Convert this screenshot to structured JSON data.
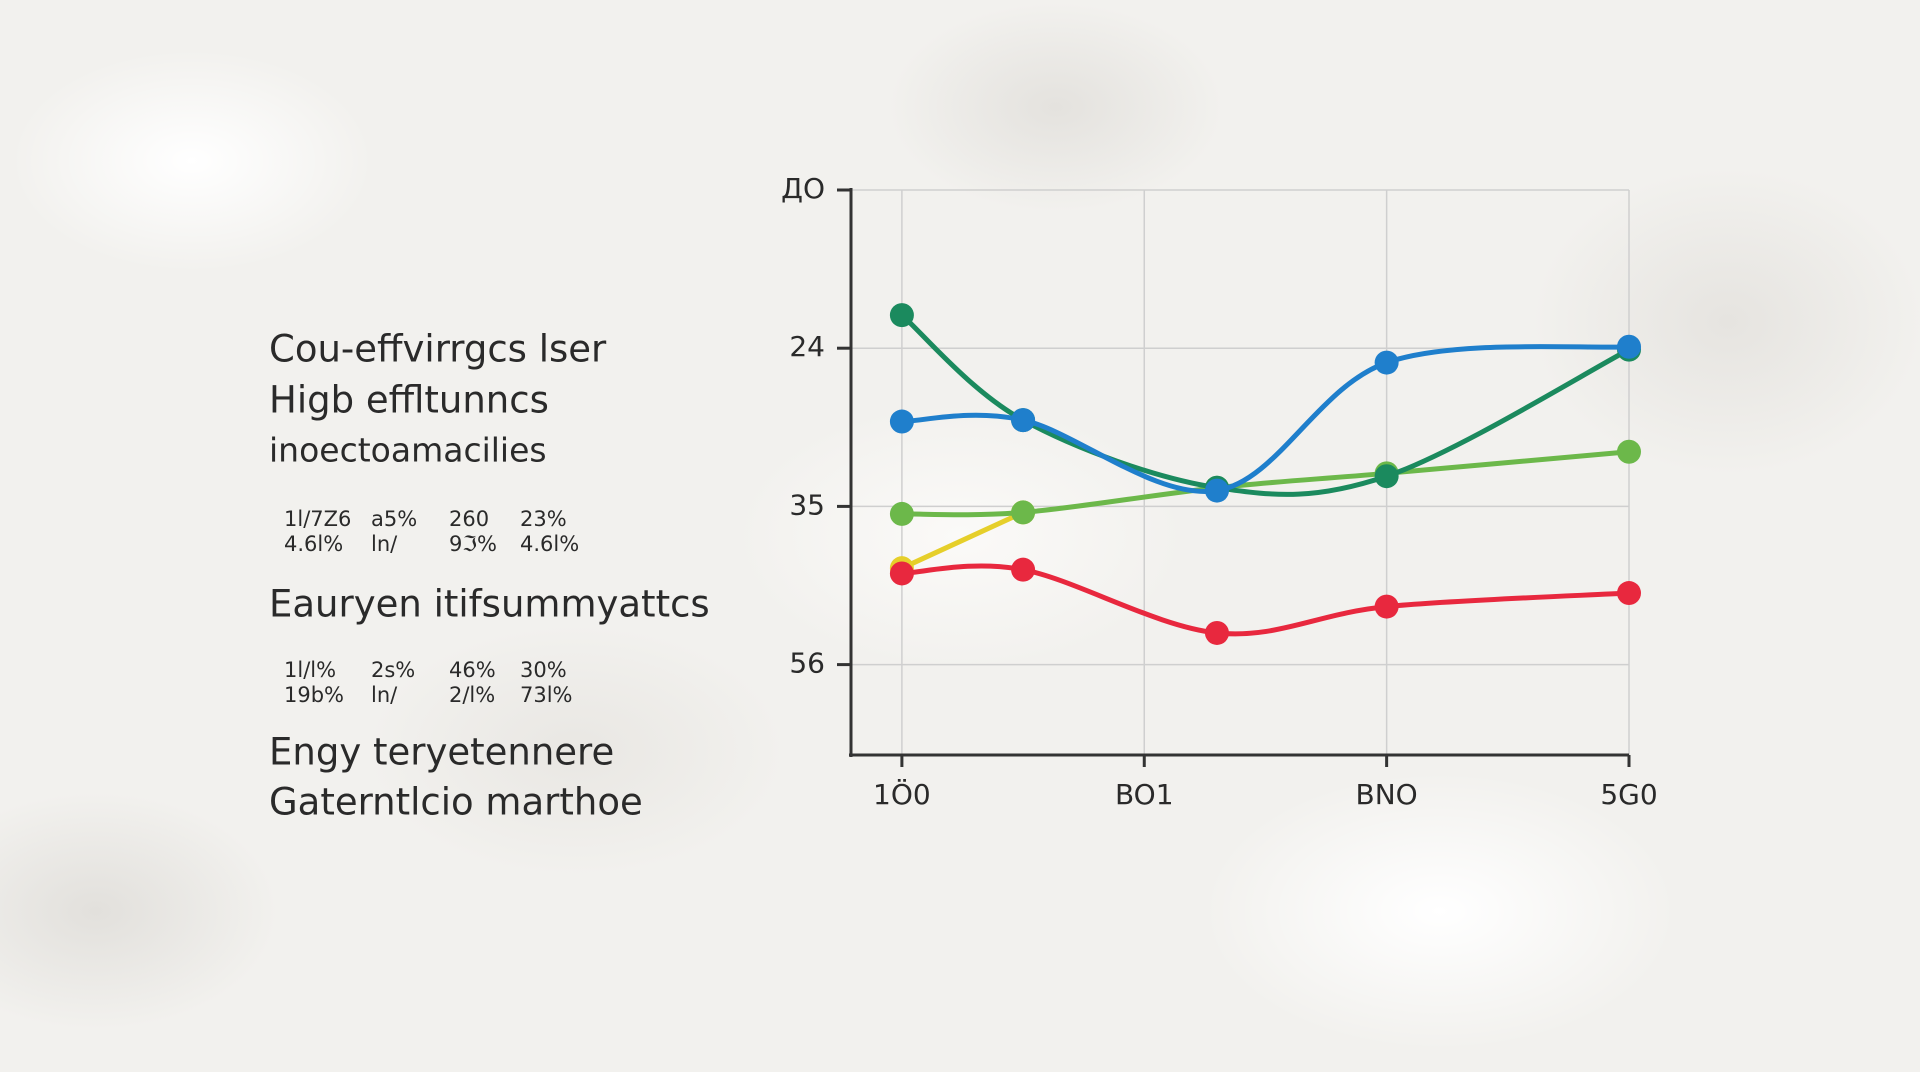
{
  "text_panel": {
    "lines": [
      "Cou-effvirrgcs lser",
      "Higb effltunncs",
      "inoectoamacilies"
    ],
    "stats_1": [
      [
        "1l/7Z6",
        "a5%",
        "260",
        "23%"
      ],
      [
        "4.6l%",
        "ln/",
        "9ℑ%",
        "4.6l%"
      ]
    ],
    "heading_2": "Eauryen itifsummyattcs",
    "stats_2": [
      [
        "1l/l%",
        "2s%",
        "46%",
        "30%"
      ],
      [
        "19b%",
        "ln/",
        "2/l%",
        "73l%"
      ]
    ],
    "footer_lines": [
      "Engy teryetennere",
      "Gaterntlcio marthoe"
    ]
  },
  "chart_data": {
    "type": "line",
    "x": [
      0,
      0.5,
      1.3,
      2,
      3
    ],
    "xlim": [
      -0.21,
      3
    ],
    "xticks": [
      {
        "value": 0,
        "label": "1Ö0"
      },
      {
        "value": 1,
        "label": "BO1"
      },
      {
        "value": 2,
        "label": "BNO"
      },
      {
        "value": 3,
        "label": "5G0"
      }
    ],
    "ylim": [
      68,
      13
    ],
    "yticks": [
      {
        "value": 13,
        "label": "ДО"
      },
      24,
      35,
      56
    ],
    "grid": true,
    "series": [
      {
        "color": "#e6cf2a",
        "values": [
          43.2,
          35.8,
          null,
          null,
          null
        ]
      },
      {
        "color": "#e8283e",
        "values": [
          43.9,
          43.4,
          51.8,
          48.3,
          46.5
        ]
      },
      {
        "color": "#6cb84a",
        "values": [
          36.0,
          35.8,
          33.7,
          32.7,
          31.2
        ]
      },
      {
        "color": "#1b8a5e",
        "values": [
          21.7,
          29.0,
          33.7,
          32.9,
          24.1
        ]
      },
      {
        "color": "#1f7fcc",
        "values": [
          29.1,
          29.0,
          33.9,
          25.0,
          23.9
        ]
      }
    ]
  }
}
